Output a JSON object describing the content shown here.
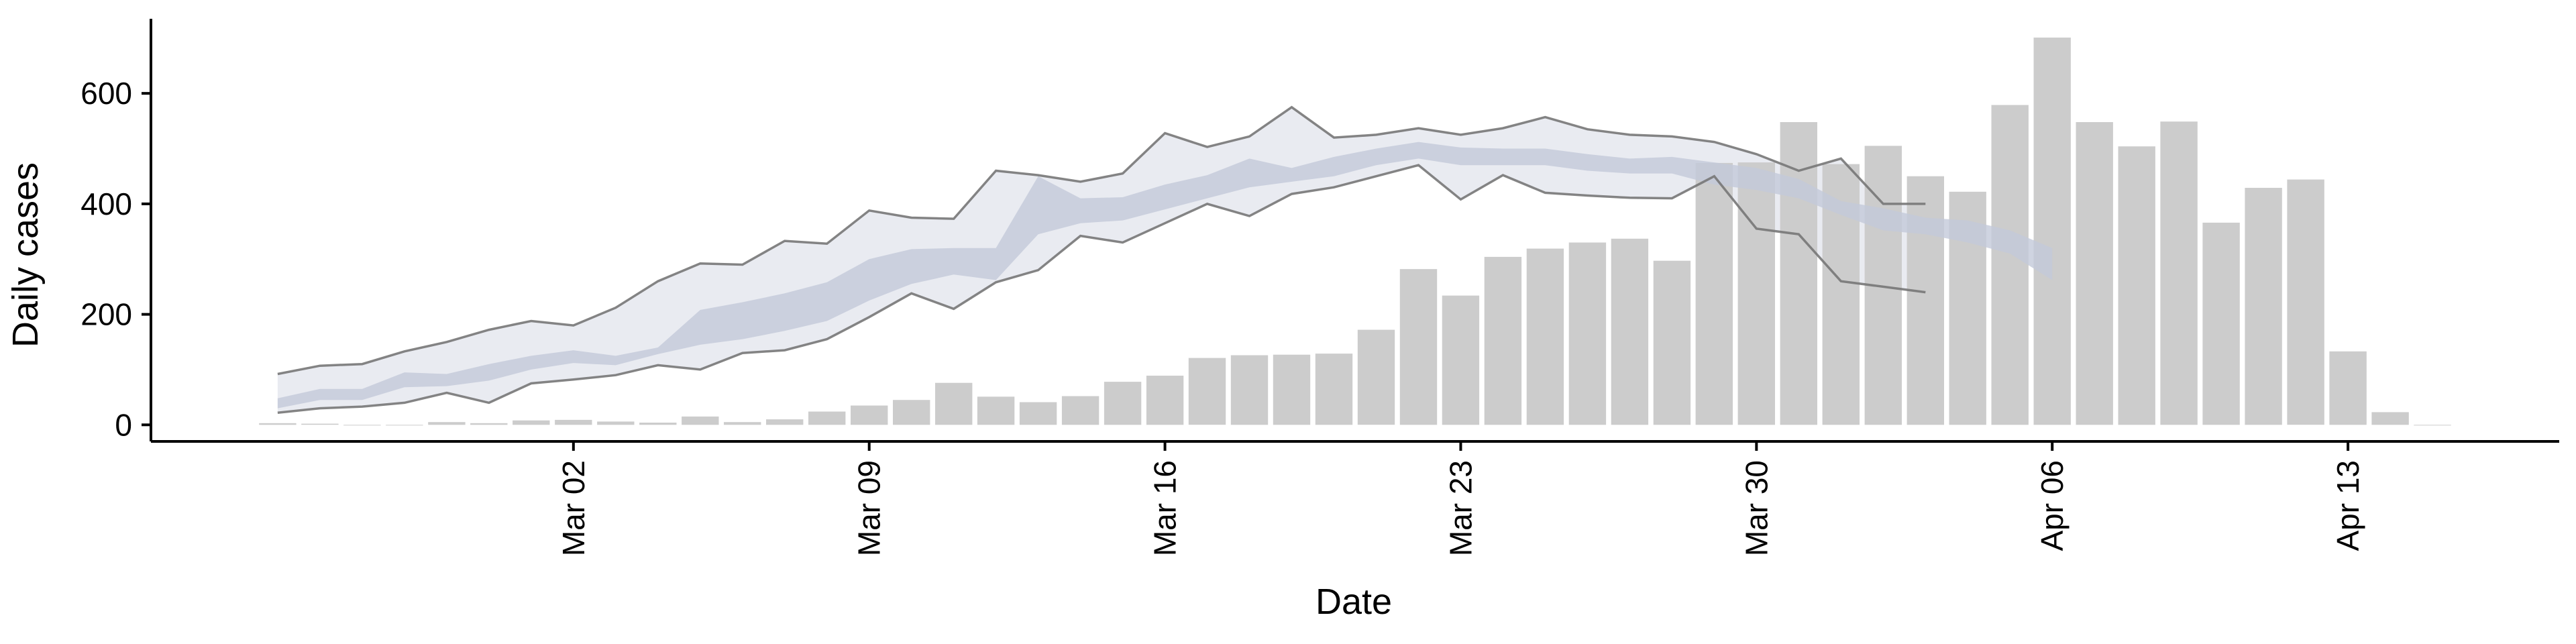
{
  "chart_data": {
    "type": "bar",
    "title": "",
    "xlabel": "Date",
    "ylabel": "Daily cases",
    "ylim": [
      -30,
      735
    ],
    "y_ticks": [
      0,
      200,
      400,
      600
    ],
    "x_ticks": [
      {
        "label": "Mar 02",
        "date": "2020-03-02"
      },
      {
        "label": "Mar 09",
        "date": "2020-03-09"
      },
      {
        "label": "Mar 16",
        "date": "2020-03-16"
      },
      {
        "label": "Mar 23",
        "date": "2020-03-23"
      },
      {
        "label": "Mar 30",
        "date": "2020-03-30"
      },
      {
        "label": "Apr 06",
        "date": "2020-04-06"
      },
      {
        "label": "Apr 13",
        "date": "2020-04-13"
      }
    ],
    "x_range": [
      "2020-02-21",
      "2020-04-18"
    ],
    "grid": false,
    "legend": "none",
    "colors": {
      "bars": "#cccccc",
      "outer_band": "#e8eaf0",
      "inner_band": "#c3c9da",
      "bound_lines": "#777777",
      "axis": "#000000"
    },
    "bars": {
      "dates": [
        "2020-02-24",
        "2020-02-25",
        "2020-02-26",
        "2020-02-27",
        "2020-02-28",
        "2020-02-29",
        "2020-03-01",
        "2020-03-02",
        "2020-03-03",
        "2020-03-04",
        "2020-03-05",
        "2020-03-06",
        "2020-03-07",
        "2020-03-08",
        "2020-03-09",
        "2020-03-10",
        "2020-03-11",
        "2020-03-12",
        "2020-03-13",
        "2020-03-14",
        "2020-03-15",
        "2020-03-16",
        "2020-03-17",
        "2020-03-18",
        "2020-03-19",
        "2020-03-20",
        "2020-03-21",
        "2020-03-22",
        "2020-03-23",
        "2020-03-24",
        "2020-03-25",
        "2020-03-26",
        "2020-03-27",
        "2020-03-28",
        "2020-03-29",
        "2020-03-30",
        "2020-03-31",
        "2020-04-01",
        "2020-04-02",
        "2020-04-03",
        "2020-04-04",
        "2020-04-05",
        "2020-04-06",
        "2020-04-07",
        "2020-04-08",
        "2020-04-09",
        "2020-04-10",
        "2020-04-11",
        "2020-04-12",
        "2020-04-13",
        "2020-04-14",
        "2020-04-15"
      ],
      "values": [
        3,
        2,
        0,
        0,
        5,
        3,
        8,
        9,
        6,
        4,
        15,
        5,
        10,
        24,
        35,
        45,
        76,
        51,
        41,
        52,
        78,
        89,
        121,
        126,
        127,
        129,
        172,
        282,
        234,
        304,
        319,
        330,
        337,
        297,
        474,
        475,
        548,
        472,
        505,
        450,
        422,
        579,
        701,
        548,
        504,
        549,
        366,
        429,
        444,
        133,
        23,
        0
      ]
    },
    "estimate": {
      "dates": [
        "2020-02-24",
        "2020-02-25",
        "2020-02-26",
        "2020-02-27",
        "2020-02-28",
        "2020-02-29",
        "2020-03-01",
        "2020-03-02",
        "2020-03-03",
        "2020-03-04",
        "2020-03-05",
        "2020-03-06",
        "2020-03-07",
        "2020-03-08",
        "2020-03-09",
        "2020-03-10",
        "2020-03-11",
        "2020-03-12",
        "2020-03-13",
        "2020-03-14",
        "2020-03-15",
        "2020-03-16",
        "2020-03-17",
        "2020-03-18",
        "2020-03-19",
        "2020-03-20",
        "2020-03-21",
        "2020-03-22",
        "2020-03-23",
        "2020-03-24",
        "2020-03-25",
        "2020-03-26",
        "2020-03-27",
        "2020-03-28",
        "2020-03-29",
        "2020-03-30",
        "2020-03-31",
        "2020-04-01",
        "2020-04-02",
        "2020-04-03",
        "2020-04-04",
        "2020-04-05",
        "2020-04-06"
      ],
      "upper90": [
        92,
        107,
        110,
        133,
        150,
        172,
        188,
        180,
        212,
        260,
        292,
        290,
        333,
        328,
        388,
        375,
        373,
        460,
        452,
        440,
        455,
        528,
        503,
        522,
        575,
        520,
        525,
        537,
        525,
        537,
        557,
        535,
        525,
        522,
        512,
        490,
        460,
        482,
        400,
        400,
        null,
        null,
        null
      ],
      "lower90": [
        22,
        30,
        33,
        40,
        58,
        40,
        75,
        82,
        90,
        108,
        100,
        130,
        135,
        155,
        195,
        238,
        210,
        258,
        280,
        342,
        330,
        365,
        400,
        378,
        418,
        430,
        450,
        470,
        408,
        452,
        420,
        415,
        411,
        410,
        450,
        355,
        345,
        260,
        250,
        240,
        null,
        null,
        null
      ],
      "inner_upper": [
        48,
        65,
        65,
        95,
        92,
        110,
        125,
        135,
        125,
        140,
        208,
        222,
        238,
        258,
        300,
        318,
        320,
        320,
        450,
        410,
        412,
        435,
        452,
        482,
        465,
        485,
        500,
        512,
        502,
        500,
        500,
        490,
        482,
        485,
        475,
        465,
        445,
        405,
        392,
        375,
        370,
        352,
        320
      ],
      "inner_lower": [
        30,
        45,
        45,
        68,
        70,
        80,
        100,
        112,
        108,
        128,
        145,
        155,
        170,
        188,
        225,
        255,
        272,
        262,
        345,
        365,
        370,
        390,
        410,
        430,
        440,
        450,
        470,
        482,
        470,
        470,
        470,
        460,
        455,
        455,
        435,
        425,
        410,
        380,
        352,
        345,
        330,
        310,
        262
      ]
    }
  }
}
